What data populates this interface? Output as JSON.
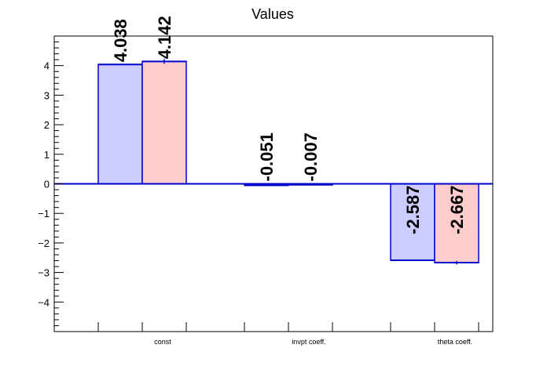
{
  "chart_data": {
    "type": "bar",
    "title": "Values",
    "xlabel": "",
    "ylabel": "",
    "categories": [
      "const",
      "invpt coeff.",
      "theta coeff."
    ],
    "series": [
      {
        "values": [
          4.038,
          -0.051,
          -2.587
        ],
        "labels": [
          "4.038",
          "-0.051",
          "-2.587"
        ],
        "errors": [
          0,
          0,
          0
        ]
      },
      {
        "values": [
          4.142,
          -0.007,
          -2.667
        ],
        "labels": [
          "4.142",
          "-0.007",
          "-2.667"
        ],
        "errors": [
          0.08,
          0.01,
          0.06
        ]
      }
    ],
    "ylim": [
      -5,
      5
    ],
    "yticks": [
      -4,
      -3,
      -2,
      -1,
      0,
      1,
      2,
      3,
      4
    ],
    "ytick_labels": [
      "−4",
      "−3",
      "−2",
      "−1",
      "0",
      "1",
      "2",
      "3",
      "4"
    ],
    "grid": false,
    "legend": "none"
  },
  "colors": {
    "series_fill": [
      "#ccccff",
      "#ffcccc"
    ],
    "series_stroke": "#0000cc",
    "axis": "#000000"
  }
}
